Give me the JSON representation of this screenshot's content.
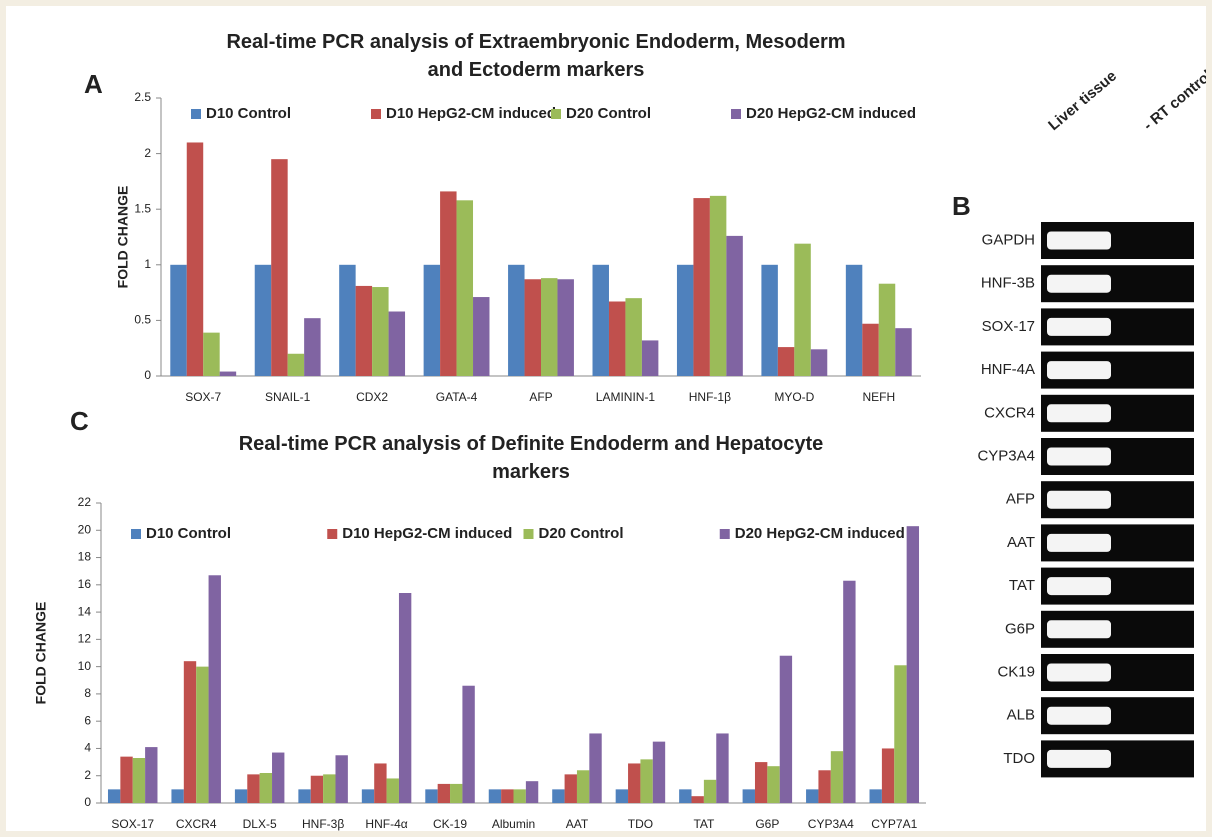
{
  "panel_labels": [
    "A",
    "B",
    "C"
  ],
  "chart_data": [
    {
      "type": "bar",
      "title": "Real-time PCR analysis of Extraembryonic Endoderm, Mesoderm and Ectoderm markers",
      "y_label": "FOLD CHANGE",
      "categories": [
        "SOX-7",
        "SNAIL-1",
        "CDX2",
        "GATA-4",
        "AFP",
        "LAMININ-1",
        "HNF-1β",
        "MYO-D",
        "NEFH"
      ],
      "series": [
        {
          "name": "D10 Control",
          "color": "#4f81bd",
          "values": [
            1,
            1,
            1,
            1,
            1,
            1,
            1,
            1,
            1
          ]
        },
        {
          "name": "D10 HepG2-CM induced",
          "color": "#c0504d",
          "values": [
            2.1,
            1.95,
            0.81,
            1.66,
            0.87,
            0.67,
            1.6,
            0.26,
            0.47
          ]
        },
        {
          "name": "D20 Control",
          "color": "#9bbb59",
          "values": [
            0.39,
            0.2,
            0.8,
            1.58,
            0.88,
            0.7,
            1.62,
            1.19,
            0.83
          ]
        },
        {
          "name": "D20 HepG2-CM induced",
          "color": "#8064a2",
          "values": [
            0.04,
            0.52,
            0.58,
            0.71,
            0.87,
            0.32,
            1.26,
            0.24,
            0.43
          ]
        }
      ],
      "ylim": [
        0,
        2.5
      ],
      "yticks": [
        0,
        0.5,
        1,
        1.5,
        2,
        2.5
      ],
      "grid": false,
      "legend": "top"
    },
    {
      "type": "bar",
      "title": "Real-time PCR analysis of Definite Endoderm and Hepatocyte markers",
      "y_label": "FOLD CHANGE",
      "categories": [
        "SOX-17",
        "CXCR4",
        "DLX-5",
        "HNF-3β",
        "HNF-4α",
        "CK-19",
        "Albumin",
        "AAT",
        "TDO",
        "TAT",
        "G6P",
        "CYP3A4",
        "CYP7A1"
      ],
      "series": [
        {
          "name": "D10 Control",
          "color": "#4f81bd",
          "values": [
            1,
            1,
            1,
            1,
            1,
            1,
            1,
            1,
            1,
            1,
            1,
            1,
            1
          ]
        },
        {
          "name": "D10 HepG2-CM induced",
          "color": "#c0504d",
          "values": [
            3.4,
            10.4,
            2.1,
            2.0,
            2.9,
            1.4,
            1.0,
            2.1,
            2.9,
            0.5,
            3.0,
            2.4,
            4.0
          ]
        },
        {
          "name": "D20 Control",
          "color": "#9bbb59",
          "values": [
            3.3,
            10.0,
            2.2,
            2.1,
            1.8,
            1.4,
            1.0,
            2.4,
            3.2,
            1.7,
            2.7,
            3.8,
            10.1
          ]
        },
        {
          "name": "D20 HepG2-CM induced",
          "color": "#8064a2",
          "values": [
            4.1,
            16.7,
            3.7,
            3.5,
            15.4,
            8.6,
            1.6,
            5.1,
            4.5,
            5.1,
            10.8,
            16.3,
            20.3
          ]
        }
      ],
      "ylim": [
        0,
        22
      ],
      "yticks": [
        0,
        2,
        4,
        6,
        8,
        10,
        12,
        14,
        16,
        18,
        20,
        22
      ],
      "grid": false,
      "legend": "top"
    }
  ],
  "gel": {
    "columns": [
      "Liver tissue",
      "- RT control"
    ],
    "rows": [
      "GAPDH",
      "HNF-3B",
      "SOX-17",
      "HNF-4A",
      "CXCR4",
      "CYP3A4",
      "AFP",
      "AAT",
      "TAT",
      "G6P",
      "CK19",
      "ALB",
      "TDO"
    ]
  }
}
